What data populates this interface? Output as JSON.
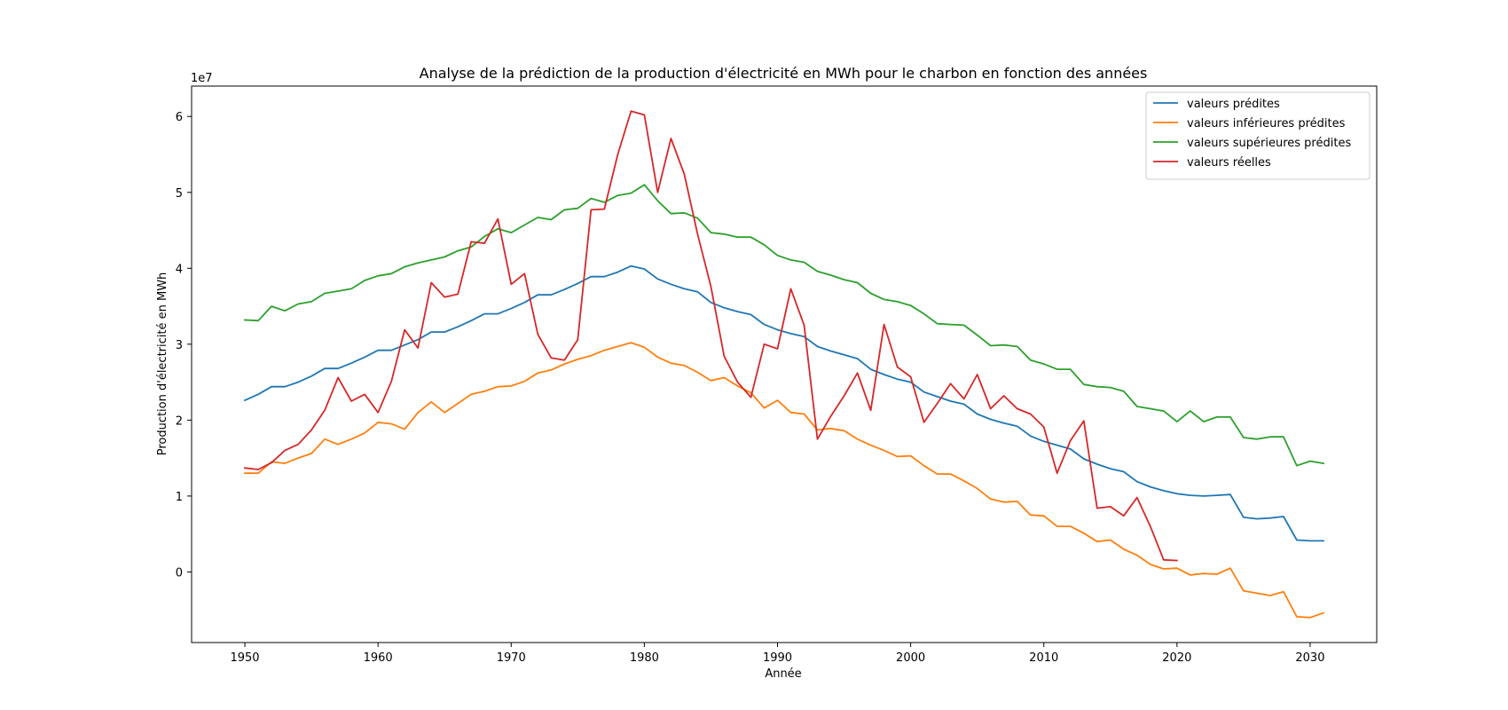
{
  "chart_data": {
    "type": "line",
    "title": "Analyse de la prédiction de la production d'électricité en MWh pour le charbon en fonction des années",
    "xlabel": "Année",
    "ylabel": "Production d'électricité en MWh",
    "y_multiplier_label": "1e7",
    "y_multiplier": 10000000,
    "xlim": [
      1946,
      2035
    ],
    "ylim": [
      -0.93,
      6.4
    ],
    "x_ticks": [
      1950,
      1960,
      1970,
      1980,
      1990,
      2000,
      2010,
      2020,
      2030
    ],
    "y_ticks": [
      0,
      1,
      2,
      3,
      4,
      5,
      6
    ],
    "grid": false,
    "legend_position": "top-right",
    "series": [
      {
        "name": "valeurs prédites",
        "color": "#1f77b4",
        "x_start": 1950,
        "values": [
          2.26,
          2.34,
          2.44,
          2.44,
          2.5,
          2.58,
          2.68,
          2.68,
          2.75,
          2.83,
          2.92,
          2.92,
          2.99,
          3.06,
          3.16,
          3.16,
          3.23,
          3.31,
          3.4,
          3.4,
          3.47,
          3.55,
          3.65,
          3.65,
          3.72,
          3.8,
          3.89,
          3.89,
          3.95,
          4.03,
          3.99,
          3.86,
          3.79,
          3.73,
          3.69,
          3.55,
          3.48,
          3.43,
          3.39,
          3.26,
          3.19,
          3.14,
          3.1,
          2.97,
          2.91,
          2.86,
          2.81,
          2.67,
          2.6,
          2.54,
          2.5,
          2.37,
          2.31,
          2.25,
          2.21,
          2.08,
          2.01,
          1.96,
          1.92,
          1.79,
          1.72,
          1.67,
          1.62,
          1.49,
          1.42,
          1.36,
          1.32,
          1.19,
          1.12,
          1.07,
          1.03,
          1.01,
          1.0,
          1.01,
          1.02,
          0.72,
          0.7,
          0.71,
          0.73,
          0.42,
          0.41,
          0.41
        ]
      },
      {
        "name": "valeurs inférieures prédites",
        "color": "#ff7f0e",
        "x_start": 1950,
        "values": [
          1.3,
          1.3,
          1.45,
          1.43,
          1.5,
          1.56,
          1.75,
          1.68,
          1.75,
          1.83,
          1.97,
          1.95,
          1.88,
          2.1,
          2.24,
          2.1,
          2.22,
          2.34,
          2.38,
          2.44,
          2.45,
          2.51,
          2.62,
          2.66,
          2.74,
          2.8,
          2.85,
          2.92,
          2.97,
          3.02,
          2.96,
          2.83,
          2.75,
          2.72,
          2.63,
          2.52,
          2.56,
          2.45,
          2.36,
          2.16,
          2.26,
          2.1,
          2.08,
          1.87,
          1.89,
          1.86,
          1.75,
          1.67,
          1.6,
          1.52,
          1.53,
          1.4,
          1.29,
          1.29,
          1.2,
          1.1,
          0.96,
          0.92,
          0.93,
          0.75,
          0.74,
          0.6,
          0.6,
          0.51,
          0.4,
          0.42,
          0.3,
          0.22,
          0.1,
          0.04,
          0.05,
          -0.04,
          -0.02,
          -0.03,
          0.05,
          -0.25,
          -0.28,
          -0.31,
          -0.26,
          -0.59,
          -0.6,
          -0.54
        ]
      },
      {
        "name": "valeurs supérieures prédites",
        "color": "#2ca02c",
        "x_start": 1950,
        "values": [
          3.32,
          3.31,
          3.5,
          3.44,
          3.53,
          3.56,
          3.67,
          3.7,
          3.73,
          3.84,
          3.9,
          3.93,
          4.02,
          4.07,
          4.11,
          4.15,
          4.23,
          4.28,
          4.42,
          4.52,
          4.47,
          4.57,
          4.67,
          4.64,
          4.77,
          4.79,
          4.92,
          4.87,
          4.96,
          4.99,
          5.1,
          4.89,
          4.72,
          4.73,
          4.66,
          4.47,
          4.45,
          4.41,
          4.41,
          4.31,
          4.17,
          4.11,
          4.08,
          3.96,
          3.91,
          3.85,
          3.81,
          3.67,
          3.59,
          3.56,
          3.51,
          3.4,
          3.27,
          3.26,
          3.25,
          3.12,
          2.98,
          2.99,
          2.97,
          2.79,
          2.74,
          2.67,
          2.67,
          2.47,
          2.44,
          2.43,
          2.38,
          2.18,
          2.15,
          2.12,
          1.98,
          2.12,
          1.98,
          2.04,
          2.04,
          1.77,
          1.75,
          1.78,
          1.78,
          1.4,
          1.46,
          1.43
        ]
      },
      {
        "name": "valeurs réelles",
        "color": "#d62728",
        "x_start": 1950,
        "values": [
          1.37,
          1.35,
          1.44,
          1.6,
          1.68,
          1.87,
          2.13,
          2.56,
          2.25,
          2.34,
          2.1,
          2.51,
          3.19,
          2.95,
          3.81,
          3.62,
          3.66,
          4.35,
          4.33,
          4.65,
          3.79,
          3.93,
          3.13,
          2.82,
          2.79,
          3.06,
          4.77,
          4.78,
          5.5,
          6.07,
          6.02,
          5.0,
          5.71,
          5.24,
          4.45,
          3.76,
          2.84,
          2.5,
          2.3,
          3.0,
          2.94,
          3.73,
          3.25,
          1.75,
          2.05,
          2.32,
          2.62,
          2.13,
          3.26,
          2.7,
          2.57,
          1.97,
          2.22,
          2.48,
          2.28,
          2.6,
          2.15,
          2.32,
          2.15,
          2.08,
          1.91,
          1.3,
          1.73,
          1.99,
          0.84,
          0.86,
          0.74,
          0.98,
          0.6,
          0.16,
          0.15
        ]
      }
    ]
  }
}
